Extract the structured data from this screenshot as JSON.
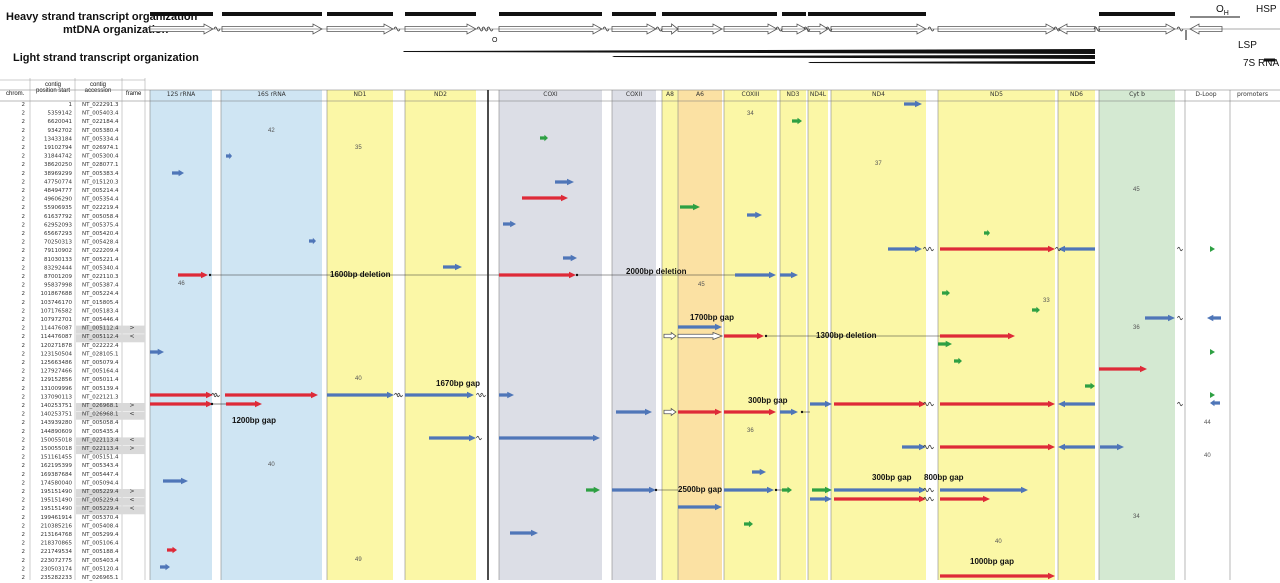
{
  "header": {
    "heavy_strand_label": "Heavy strand transcript organization",
    "mtdna_label": "mtDNA organization",
    "light_strand_label": "Light strand transcript organization",
    "right_markers": {
      "oh": "O",
      "oh_sub": "H",
      "hsp": "HSP",
      "lsp": "LSP",
      "rna7s": "7S RNA"
    },
    "ol_marker": "O"
  },
  "table_headers": {
    "chrom": "chrom.",
    "position": "contig position start",
    "accession": "contig accession",
    "frame": "frame"
  },
  "genes": [
    "12S rRNA",
    "16S rRNA",
    "ND1",
    "ND2",
    "COXI",
    "COXII",
    "A8",
    "A6",
    "COXIII",
    "ND3",
    "ND4L",
    "ND4",
    "ND5",
    "ND6",
    "Cyt b",
    "D-Loop",
    "promoters"
  ],
  "rows": [
    {
      "chrom": "2",
      "pos": "1",
      "acc": "NT_022291.3"
    },
    {
      "chrom": "2",
      "pos": "5359142",
      "acc": "NT_005403.4"
    },
    {
      "chrom": "2",
      "pos": "6620041",
      "acc": "NT_022184.4"
    },
    {
      "chrom": "2",
      "pos": "9342702",
      "acc": "NT_005380.4"
    },
    {
      "chrom": "2",
      "pos": "13433184",
      "acc": "NT_005334.4"
    },
    {
      "chrom": "2",
      "pos": "19102794",
      "acc": "NT_026974.1"
    },
    {
      "chrom": "2",
      "pos": "31844742",
      "acc": "NT_005300.4"
    },
    {
      "chrom": "2",
      "pos": "38620250",
      "acc": "NT_028077.1"
    },
    {
      "chrom": "2",
      "pos": "38969299",
      "acc": "NT_005383.4"
    },
    {
      "chrom": "2",
      "pos": "47750774",
      "acc": "NT_015120.3"
    },
    {
      "chrom": "2",
      "pos": "48494777",
      "acc": "NT_005214.4"
    },
    {
      "chrom": "2",
      "pos": "49606290",
      "acc": "NT_005354.4"
    },
    {
      "chrom": "2",
      "pos": "55906935",
      "acc": "NT_022219.4"
    },
    {
      "chrom": "2",
      "pos": "61637792",
      "acc": "NT_005058.4"
    },
    {
      "chrom": "2",
      "pos": "62952093",
      "acc": "NT_005375.4"
    },
    {
      "chrom": "2",
      "pos": "65667293",
      "acc": "NT_005420.4"
    },
    {
      "chrom": "2",
      "pos": "70250313",
      "acc": "NT_005428.4"
    },
    {
      "chrom": "2",
      "pos": "79110902",
      "acc": "NT_022209.4"
    },
    {
      "chrom": "2",
      "pos": "81030133",
      "acc": "NT_005221.4"
    },
    {
      "chrom": "2",
      "pos": "83292444",
      "acc": "NT_005340.4"
    },
    {
      "chrom": "2",
      "pos": "87001209",
      "acc": "NT_022110.3"
    },
    {
      "chrom": "2",
      "pos": "95837998",
      "acc": "NT_005387.4"
    },
    {
      "chrom": "2",
      "pos": "101867688",
      "acc": "NT_005224.4"
    },
    {
      "chrom": "2",
      "pos": "103746170",
      "acc": "NT_015805.4"
    },
    {
      "chrom": "2",
      "pos": "107176582",
      "acc": "NT_005183.4"
    },
    {
      "chrom": "2",
      "pos": "107972701",
      "acc": "NT_005446.4"
    },
    {
      "chrom": "2",
      "pos": "114476087",
      "acc": "NT_005112.4",
      "fr": ">"
    },
    {
      "chrom": "2",
      "pos": "114476087",
      "acc": "NT_005112.4",
      "fr": "<"
    },
    {
      "chrom": "2",
      "pos": "120271878",
      "acc": "NT_022222.4"
    },
    {
      "chrom": "2",
      "pos": "123150504",
      "acc": "NT_028105.1"
    },
    {
      "chrom": "2",
      "pos": "125663486",
      "acc": "NT_005079.4"
    },
    {
      "chrom": "2",
      "pos": "127927466",
      "acc": "NT_005164.4"
    },
    {
      "chrom": "2",
      "pos": "129152856",
      "acc": "NT_005011.4"
    },
    {
      "chrom": "2",
      "pos": "131009996",
      "acc": "NT_005139.4"
    },
    {
      "chrom": "2",
      "pos": "137090113",
      "acc": "NT_022121.3"
    },
    {
      "chrom": "2",
      "pos": "140253751",
      "acc": "NT_026968.1",
      "fr": ">"
    },
    {
      "chrom": "2",
      "pos": "140253751",
      "acc": "NT_026968.1",
      "fr": "<"
    },
    {
      "chrom": "2",
      "pos": "143939280",
      "acc": "NT_005058.4"
    },
    {
      "chrom": "2",
      "pos": "144890609",
      "acc": "NT_005435.4"
    },
    {
      "chrom": "2",
      "pos": "150055018",
      "acc": "NT_022113.4",
      "fr": "<"
    },
    {
      "chrom": "2",
      "pos": "150055018",
      "acc": "NT_022113.4",
      "fr": ">"
    },
    {
      "chrom": "2",
      "pos": "151161455",
      "acc": "NT_005151.4"
    },
    {
      "chrom": "2",
      "pos": "162195399",
      "acc": "NT_005343.4"
    },
    {
      "chrom": "2",
      "pos": "169387684",
      "acc": "NT_005447.4"
    },
    {
      "chrom": "2",
      "pos": "174580040",
      "acc": "NT_005094.4"
    },
    {
      "chrom": "2",
      "pos": "195151490",
      "acc": "NT_005229.4",
      "fr": ">"
    },
    {
      "chrom": "2",
      "pos": "195151490",
      "acc": "NT_005229.4",
      "fr": "<"
    },
    {
      "chrom": "2",
      "pos": "195151490",
      "acc": "NT_005229.4",
      "fr": "<"
    },
    {
      "chrom": "2",
      "pos": "199461914",
      "acc": "NT_005370.4"
    },
    {
      "chrom": "2",
      "pos": "210385216",
      "acc": "NT_005408.4"
    },
    {
      "chrom": "2",
      "pos": "213164768",
      "acc": "NT_005299.4"
    },
    {
      "chrom": "2",
      "pos": "218370865",
      "acc": "NT_005106.4"
    },
    {
      "chrom": "2",
      "pos": "221749534",
      "acc": "NT_005188.4"
    },
    {
      "chrom": "2",
      "pos": "223072775",
      "acc": "NT_005403.4"
    },
    {
      "chrom": "2",
      "pos": "230503174",
      "acc": "NT_005120.4"
    },
    {
      "chrom": "2",
      "pos": "235282233",
      "acc": "NT_026965.1"
    }
  ],
  "annotations": {
    "del1600": "1600bp deletion",
    "del2000": "2000bp deletion",
    "gap1700": "1700bp gap",
    "del1300": "1300bp deletion",
    "gap1670": "1670bp gap",
    "gap1200": "1200bp gap",
    "gap300a": "300bp gap",
    "gap2500": "2500bp gap",
    "gap300b": "300bp gap",
    "gap800": "800bp gap",
    "gap1000": "1000bp gap"
  },
  "region_counts": {
    "c12s_bot": "46",
    "c16s_top": "42",
    "c16s_bot": "40",
    "cnd1_top": "35",
    "cnd1_mid": "40",
    "cnd1_bot": "49",
    "ca6": "45",
    "ccox3_top": "34",
    "ccox3_mid": "36",
    "cnd4": "37",
    "cnd5": "33",
    "cnd5_bot": "40",
    "ccytb_top": "45",
    "ccytb_mid": "36",
    "ccytb_bot": "34",
    "cdloop": "44",
    "cdloop2": "40"
  },
  "colors": {
    "rrna_bg": "#cfe5f3",
    "protein_bg": "#fbf7a6",
    "cox_bg": "#dcdee6",
    "atp_bg": "#fbe1a3",
    "cytb_bg": "#d4e9d2",
    "blue_arrow": "#4f76b8",
    "red_arrow": "#de2a38",
    "green_arrow": "#2ea043",
    "heavy_bar": "#111111"
  }
}
